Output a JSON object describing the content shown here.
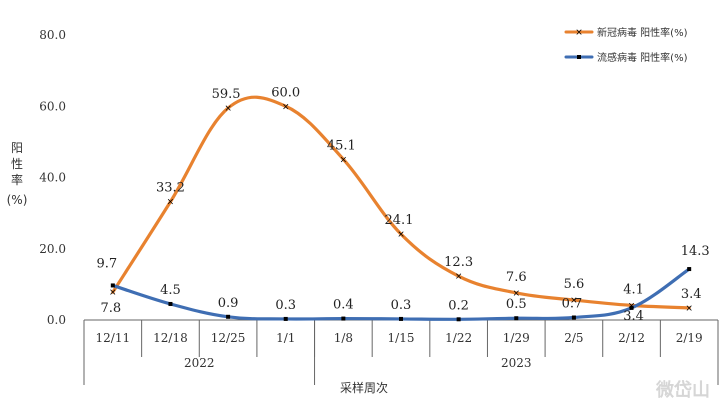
{
  "chart_data": {
    "type": "line",
    "categories": [
      "12/11",
      "12/18",
      "12/25",
      "1/1",
      "1/8",
      "1/15",
      "1/22",
      "1/29",
      "2/5",
      "2/12",
      "2/19"
    ],
    "groups": [
      {
        "label": "2022",
        "categories": [
          "12/11",
          "12/18",
          "12/25",
          "1/1"
        ]
      },
      {
        "label": "2023",
        "categories": [
          "1/8",
          "1/15",
          "1/22",
          "1/29",
          "2/5",
          "2/12",
          "2/19"
        ]
      }
    ],
    "series": [
      {
        "name": "新冠病毒 阳性率(%)",
        "color": "#E8822F",
        "values": [
          7.8,
          33.2,
          59.5,
          60.0,
          45.1,
          24.1,
          12.3,
          7.6,
          5.6,
          4.1,
          3.4
        ]
      },
      {
        "name": "流感病毒 阳性率(%)",
        "color": "#3F6EB3",
        "values": [
          9.7,
          4.5,
          0.9,
          0.3,
          0.4,
          0.3,
          0.2,
          0.5,
          0.7,
          3.4,
          14.3
        ]
      }
    ],
    "ylim": [
      0,
      80
    ],
    "yticks": [
      "0.0",
      "20.0",
      "40.0",
      "60.0",
      "80.0"
    ],
    "ylabel": "阳性率(%)",
    "xlabel": "采样周次",
    "grid": false,
    "legend": "top-right"
  },
  "watermark": "微岱山"
}
